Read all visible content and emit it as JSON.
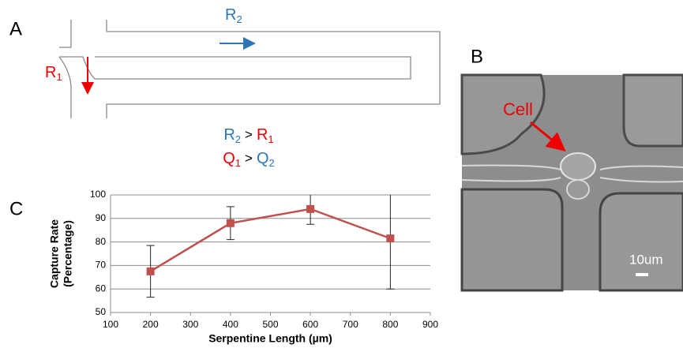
{
  "panel_a": {
    "label": "A",
    "top": [
      "R",
      "2"
    ],
    "left": [
      "R",
      "1"
    ],
    "eq1": [
      [
        "R",
        "2"
      ],
      ">",
      [
        "R",
        "1"
      ]
    ],
    "eq2": [
      [
        "Q",
        "1"
      ],
      ">",
      [
        "Q",
        "2"
      ]
    ]
  },
  "panel_b": {
    "label": "B",
    "cell": "Cell",
    "scale": "10um"
  },
  "panel_c": {
    "label": "C"
  },
  "chart_data": {
    "type": "line",
    "xlabel": "Serpentine Length (µm)",
    "ylabel": [
      "Capture Rate",
      "(Percentage)"
    ],
    "x": [
      200,
      400,
      600,
      800
    ],
    "series": [
      {
        "color": "#c0504d",
        "values": [
          67.5,
          88,
          94,
          81.5
        ],
        "errors": [
          11,
          7,
          6.5,
          21.5
        ]
      }
    ],
    "xlim": [
      100,
      900
    ],
    "xticks": [
      100,
      200,
      300,
      400,
      500,
      600,
      700,
      800,
      900
    ],
    "ylim": [
      50,
      100
    ],
    "yticks": [
      50,
      60,
      70,
      80,
      90,
      100
    ],
    "grid": true
  }
}
